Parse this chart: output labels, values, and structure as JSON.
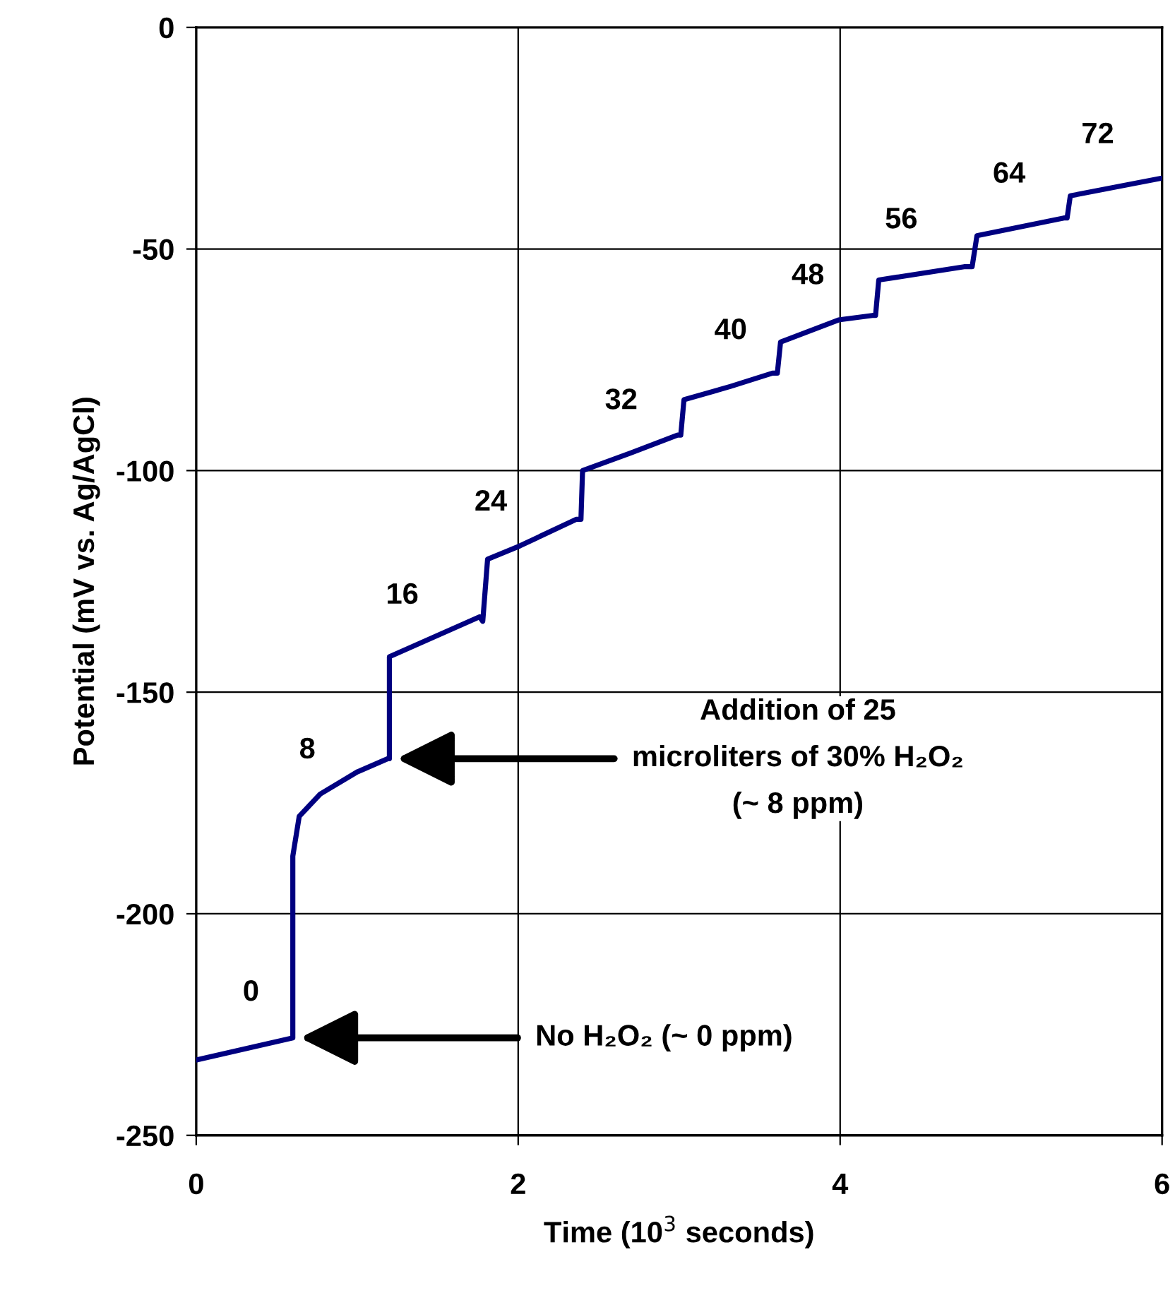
{
  "chart_data": {
    "type": "line",
    "xlabel": "Time (10$^{3}$ seconds)",
    "ylabel": "Potential (mV vs. Ag/AgCl)",
    "xlim": [
      0,
      6
    ],
    "xticks": [
      0,
      2,
      4,
      6
    ],
    "ylim": [
      -250,
      0
    ],
    "yticks": [
      -250,
      -200,
      -150,
      -100,
      -50,
      0
    ],
    "grid": true,
    "marker": "none",
    "line_style": "solid",
    "series": [
      {
        "color": "#000080",
        "x": [
          0,
          0.6,
          0.6,
          0.6,
          0.64,
          0.77,
          1.0,
          1.19,
          1.2,
          1.2,
          1.76,
          1.78,
          1.81,
          2.01,
          2.36,
          2.39,
          2.4,
          2.7,
          2.99,
          3.01,
          3.03,
          3.32,
          3.58,
          3.61,
          3.63,
          3.99,
          4.2,
          4.22,
          4.24,
          4.77,
          4.82,
          4.85,
          5.39,
          5.41,
          5.43,
          6.0
        ],
        "values": [
          -233,
          -228,
          -200,
          -187,
          -178,
          -173,
          -168,
          -165,
          -165,
          -142,
          -133,
          -134,
          -120,
          -117,
          -111,
          -111,
          -100,
          -96,
          -92,
          -92,
          -84,
          -81,
          -78,
          -78,
          -71,
          -66,
          -65,
          -65,
          -57,
          -54,
          -54,
          -47,
          -43,
          -43,
          -38,
          -34
        ]
      }
    ],
    "annotations": [
      {
        "text": "0",
        "x": 0.34,
        "y": -230.3
      },
      {
        "text": "8",
        "x": 0.69,
        "y": -175.6
      },
      {
        "text": "16",
        "x": 1.28,
        "y": -140.7
      },
      {
        "text": "24",
        "x": 1.83,
        "y": -119.7
      },
      {
        "text": "32",
        "x": 2.64,
        "y": -96.8
      },
      {
        "text": "40",
        "x": 3.32,
        "y": -81
      },
      {
        "text": "48",
        "x": 3.8,
        "y": -68.6
      },
      {
        "text": "56",
        "x": 4.38,
        "y": -56
      },
      {
        "text": "64",
        "x": 5.05,
        "y": -45.7
      },
      {
        "text": "72",
        "x": 5.6,
        "y": -36.8
      },
      {
        "text": "Addition of 25\nmicroliters of 30% H₂O₂\n(~ 8 ppm)",
        "x": 1.22,
        "y": -165
      },
      {
        "text": "No H₂O₂ (~ 0 ppm)",
        "x": 0.62,
        "y": -228
      }
    ]
  }
}
